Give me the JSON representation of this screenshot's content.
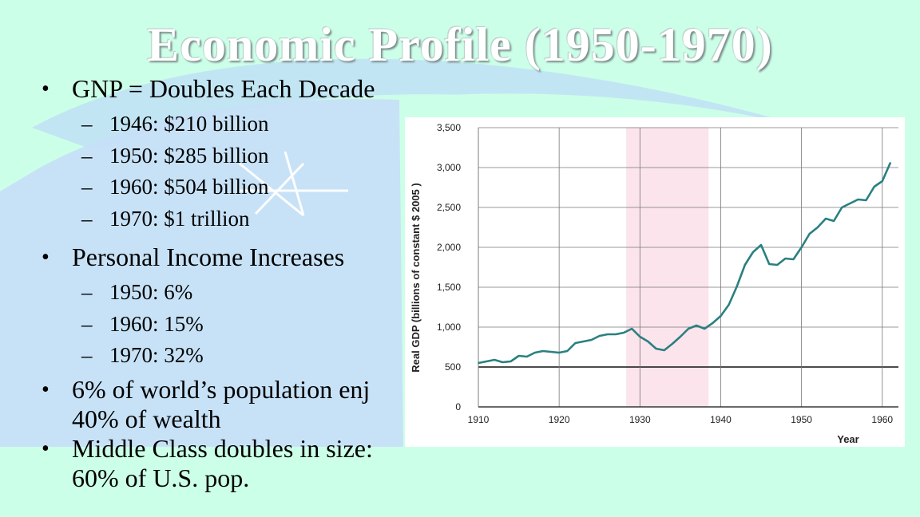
{
  "slide": {
    "title": "Economic Profile (1950-1970)",
    "bullets": [
      {
        "text": "GNP = Doubles Each Decade",
        "subs": [
          "1946: $210 billion",
          "1950: $285 billion",
          "1960: $504 billion",
          "1970: $1 trillion"
        ]
      },
      {
        "text": "Personal Income Increases",
        "subs": [
          "1950: 6%",
          "1960: 15%",
          "1970: 32%"
        ]
      },
      {
        "text_line1": "6% of world’s population enj",
        "text_line2": "40% of wealth"
      },
      {
        "text_line1": "Middle Class doubles in size:",
        "text_line2": "60% of U.S. pop."
      }
    ],
    "bullet_glyph": "•",
    "dash_glyph": "–"
  },
  "chart_data": {
    "type": "line",
    "xlabel": "Year",
    "ylabel": "Real GDP (billions of constant $ 2005 )",
    "xlim": [
      1910,
      1962
    ],
    "ylim": [
      0,
      3500
    ],
    "x_ticks": [
      1910,
      1920,
      1930,
      1940,
      1950,
      1960
    ],
    "y_ticks": [
      0,
      500,
      1000,
      1500,
      2000,
      2500,
      3000,
      3500
    ],
    "y_tick_labels": [
      "0",
      "500",
      "1,000",
      "1,500",
      "2,000",
      "2,500",
      "3,000",
      "3,500"
    ],
    "grid": true,
    "shaded_region": {
      "x_start": 1928.3,
      "x_end": 1938.5,
      "color": "#fce4ec"
    },
    "series": [
      {
        "color": "#2a8080",
        "x": [
          1910,
          1911,
          1912,
          1913,
          1914,
          1915,
          1916,
          1917,
          1918,
          1919,
          1920,
          1921,
          1922,
          1923,
          1924,
          1925,
          1926,
          1927,
          1928,
          1929,
          1930,
          1931,
          1932,
          1933,
          1934,
          1935,
          1936,
          1937,
          1938,
          1939,
          1940,
          1941,
          1942,
          1943,
          1944,
          1945,
          1946,
          1947,
          1948,
          1949,
          1950,
          1951,
          1952,
          1953,
          1954,
          1955,
          1956,
          1957,
          1958,
          1959,
          1960,
          1961
        ],
        "values": [
          550,
          570,
          590,
          560,
          570,
          640,
          630,
          680,
          700,
          690,
          680,
          700,
          800,
          820,
          840,
          890,
          910,
          910,
          930,
          980,
          880,
          820,
          730,
          710,
          790,
          880,
          980,
          1020,
          980,
          1050,
          1140,
          1280,
          1510,
          1780,
          1940,
          2030,
          1790,
          1780,
          1860,
          1850,
          2000,
          2170,
          2250,
          2360,
          2330,
          2500,
          2550,
          2600,
          2590,
          2760,
          2830,
          3060
        ]
      }
    ]
  }
}
